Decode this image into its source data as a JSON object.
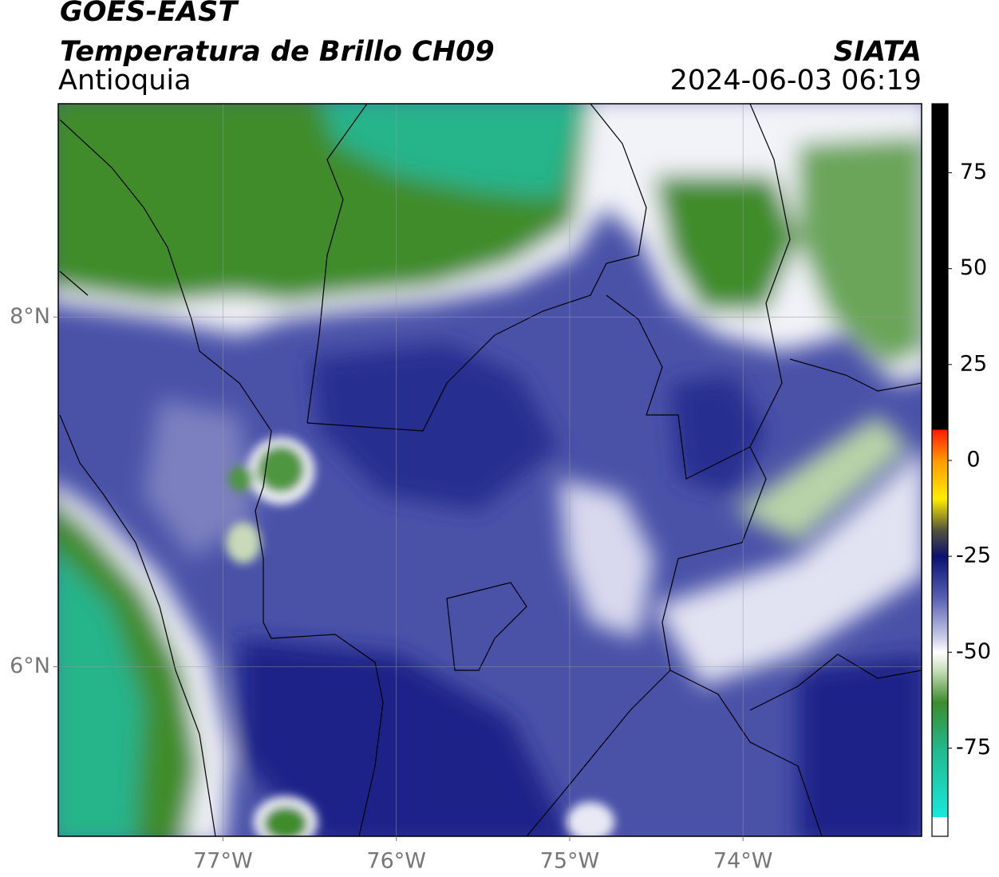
{
  "map": {
    "title": "GOES-EAST",
    "subtitle": "Temperatura de Brillo CH09",
    "region": "Antioquia",
    "source": "SIATA",
    "datetime": "2024-06-03 06:19",
    "xlim": [
      -77.95,
      -72.97
    ],
    "ylim": [
      5.03,
      9.22
    ],
    "xticks": [
      {
        "value": -77,
        "label": "77°W"
      },
      {
        "value": -76,
        "label": "76°W"
      },
      {
        "value": -75,
        "label": "75°W"
      },
      {
        "value": -74,
        "label": "74°W"
      }
    ],
    "yticks": [
      {
        "value": 8,
        "label": "8°N"
      },
      {
        "value": 6,
        "label": "6°N"
      }
    ],
    "grid": true,
    "colorbar": {
      "range": [
        -98,
        93
      ],
      "ticks": [
        75,
        50,
        25,
        0,
        -25,
        -50,
        -75
      ],
      "stops": [
        {
          "value": 93,
          "color": "#000000"
        },
        {
          "value": 8,
          "color": "#000000"
        },
        {
          "value": 8,
          "color": "#ff1a00"
        },
        {
          "value": 0,
          "color": "#ff9900"
        },
        {
          "value": -10,
          "color": "#ffee00"
        },
        {
          "value": -18,
          "color": "#55553a"
        },
        {
          "value": -25,
          "color": "#0a1070"
        },
        {
          "value": -36,
          "color": "#5a62b4"
        },
        {
          "value": -46,
          "color": "#c8cae6"
        },
        {
          "value": -50,
          "color": "#ffffff"
        },
        {
          "value": -55,
          "color": "#c4dcb4"
        },
        {
          "value": -63,
          "color": "#3c8c2a"
        },
        {
          "value": -75,
          "color": "#22b88c"
        },
        {
          "value": -93,
          "color": "#18e8dc"
        },
        {
          "value": -93,
          "color": "#ffffff"
        },
        {
          "value": -98,
          "color": "#ffffff"
        }
      ]
    }
  }
}
